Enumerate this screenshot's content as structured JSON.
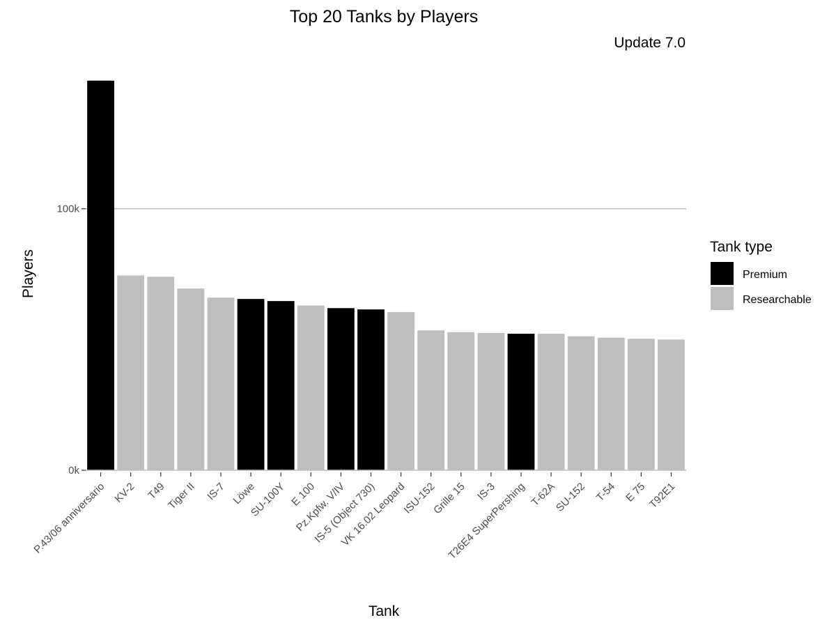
{
  "chart_data": {
    "type": "bar",
    "title": "Top 20 Tanks by Players",
    "subtitle": "Update 7.0",
    "xlabel": "Tank",
    "ylabel": "Players",
    "ylim": [
      0,
      150000
    ],
    "yticks": [
      {
        "value": 0,
        "label": "0k"
      },
      {
        "value": 100000,
        "label": "100k"
      }
    ],
    "grid": "major-horizontal",
    "categories": [
      "P.43/06 anniversario",
      "KV-2",
      "T49",
      "Tiger II",
      "IS-7",
      "Löwe",
      "SU-100Y",
      "E 100",
      "Pz.Kpfw. V/IV",
      "IS-5 (Object 730)",
      "VK 16.02 Leopard",
      "ISU-152",
      "Grille 15",
      "IS-3",
      "T26E4 SuperPershing",
      "T-62A",
      "SU-152",
      "T-54",
      "E 75",
      "T92E1"
    ],
    "values": [
      149000,
      74500,
      74000,
      69500,
      66000,
      65500,
      64700,
      63000,
      62000,
      61500,
      60500,
      53500,
      52800,
      52500,
      52200,
      52200,
      51200,
      50700,
      50300,
      50000
    ],
    "types": [
      "Premium",
      "Researchable",
      "Researchable",
      "Researchable",
      "Researchable",
      "Premium",
      "Premium",
      "Researchable",
      "Premium",
      "Premium",
      "Researchable",
      "Researchable",
      "Researchable",
      "Researchable",
      "Premium",
      "Researchable",
      "Researchable",
      "Researchable",
      "Researchable",
      "Researchable"
    ],
    "legend": {
      "title": "Tank type",
      "position": "right",
      "items": [
        {
          "label": "Premium",
          "color": "#000000"
        },
        {
          "label": "Researchable",
          "color": "#bebebe"
        }
      ]
    }
  }
}
